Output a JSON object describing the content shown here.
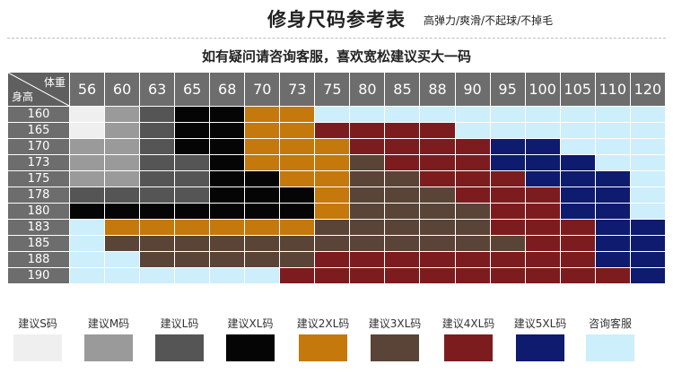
{
  "title": "修身尺码参考表",
  "tagline": "高弹力/爽滑/不起球/不掉毛",
  "subtitle": "如有疑问请咨询客服，喜欢宽松建议买大一码",
  "table": {
    "corner_weight": "体重",
    "corner_height": "身高",
    "weights": [
      "56",
      "60",
      "63",
      "65",
      "68",
      "70",
      "73",
      "75",
      "80",
      "85",
      "88",
      "90",
      "95",
      "100",
      "105",
      "110",
      "120"
    ],
    "heights": [
      "160",
      "165",
      "170",
      "173",
      "175",
      "178",
      "180",
      "183",
      "185",
      "188",
      "190"
    ],
    "grid": [
      [
        "S",
        "M",
        "L",
        "XL",
        "XL",
        "2XL",
        "2XL",
        "C",
        "C",
        "C",
        "C",
        "C",
        "C",
        "C",
        "C",
        "C",
        "C"
      ],
      [
        "S",
        "M",
        "L",
        "XL",
        "XL",
        "2XL",
        "2XL",
        "4XL",
        "4XL",
        "4XL",
        "4XL",
        "C",
        "C",
        "C",
        "C",
        "C",
        "C"
      ],
      [
        "M",
        "M",
        "L",
        "XL",
        "XL",
        "2XL",
        "2XL",
        "2XL",
        "4XL",
        "4XL",
        "4XL",
        "4XL",
        "5XL",
        "5XL",
        "C",
        "C",
        "C"
      ],
      [
        "M",
        "M",
        "L",
        "L",
        "XL",
        "2XL",
        "2XL",
        "2XL",
        "3XL",
        "4XL",
        "4XL",
        "4XL",
        "5XL",
        "5XL",
        "5XL",
        "C",
        "C"
      ],
      [
        "M",
        "M",
        "L",
        "L",
        "XL",
        "XL",
        "2XL",
        "2XL",
        "3XL",
        "3XL",
        "4XL",
        "4XL",
        "4XL",
        "5XL",
        "5XL",
        "5XL",
        "C"
      ],
      [
        "L",
        "L",
        "L",
        "L",
        "XL",
        "XL",
        "XL",
        "2XL",
        "3XL",
        "3XL",
        "3XL",
        "4XL",
        "4XL",
        "4XL",
        "5XL",
        "5XL",
        "C"
      ],
      [
        "XL",
        "XL",
        "XL",
        "XL",
        "XL",
        "XL",
        "XL",
        "2XL",
        "3XL",
        "3XL",
        "3XL",
        "3XL",
        "4XL",
        "4XL",
        "5XL",
        "5XL",
        "C"
      ],
      [
        "C",
        "2XL",
        "2XL",
        "2XL",
        "2XL",
        "2XL",
        "2XL",
        "3XL",
        "3XL",
        "3XL",
        "3XL",
        "3XL",
        "4XL",
        "4XL",
        "4XL",
        "5XL",
        "5XL"
      ],
      [
        "C",
        "3XL",
        "3XL",
        "3XL",
        "3XL",
        "3XL",
        "3XL",
        "3XL",
        "3XL",
        "3XL",
        "3XL",
        "3XL",
        "3XL",
        "4XL",
        "4XL",
        "5XL",
        "5XL"
      ],
      [
        "C",
        "C",
        "3XL",
        "3XL",
        "3XL",
        "3XL",
        "3XL",
        "4XL",
        "4XL",
        "4XL",
        "4XL",
        "4XL",
        "4XL",
        "4XL",
        "4XL",
        "5XL",
        "5XL"
      ],
      [
        "C",
        "C",
        "C",
        "C",
        "C",
        "C",
        "4XL",
        "4XL",
        "4XL",
        "4XL",
        "4XL",
        "4XL",
        "4XL",
        "4XL",
        "4XL",
        "4XL",
        "5XL"
      ]
    ]
  },
  "legend": [
    {
      "key": "S",
      "label": "建议S码",
      "color": "#efefef"
    },
    {
      "key": "M",
      "label": "建议M码",
      "color": "#9a9a9a"
    },
    {
      "key": "L",
      "label": "建议L码",
      "color": "#555555"
    },
    {
      "key": "XL",
      "label": "建议XL码",
      "color": "#050505"
    },
    {
      "key": "2XL",
      "label": "建议2XL码",
      "color": "#c5780c"
    },
    {
      "key": "3XL",
      "label": "建议3XL码",
      "color": "#5a4437"
    },
    {
      "key": "4XL",
      "label": "建议4XL码",
      "color": "#7d1c1f"
    },
    {
      "key": "5XL",
      "label": "建议5XL码",
      "color": "#0e1b6e"
    },
    {
      "key": "C",
      "label": "咨询客服",
      "color": "#cdeefb"
    }
  ]
}
